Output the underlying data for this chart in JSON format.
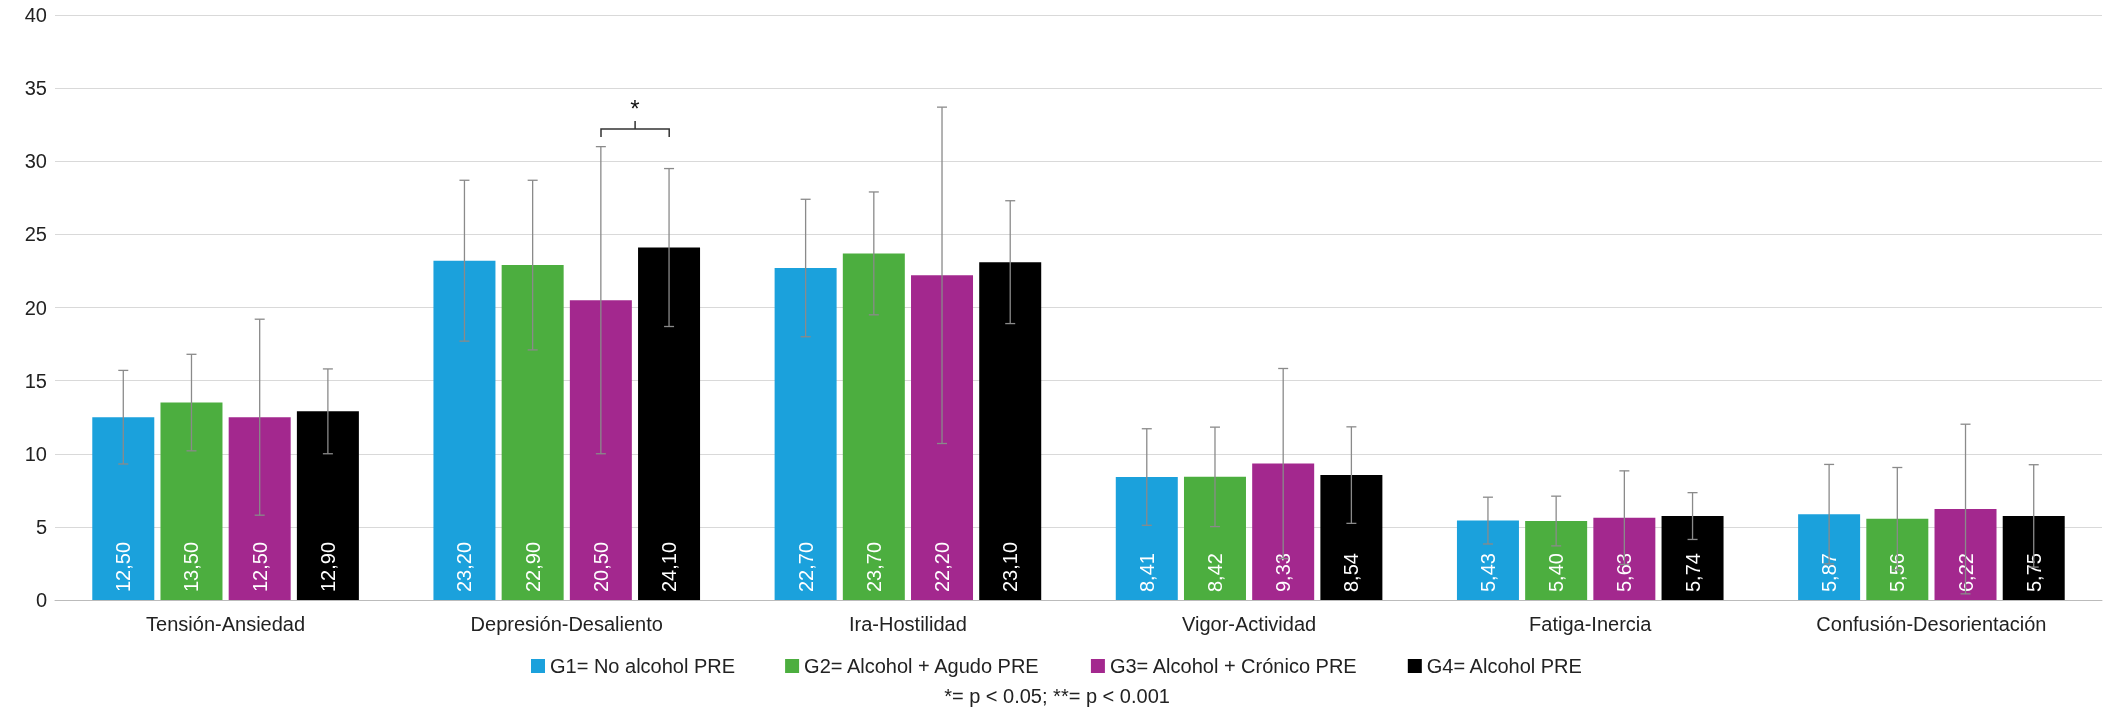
{
  "chart_data": {
    "type": "bar",
    "categories": [
      "Tensión-Ansiedad",
      "Depresión-Desaliento",
      "Ira-Hostilidad",
      "Vigor-Actividad",
      "Fatiga-Inercia",
      "Confusión-Desorientación"
    ],
    "series": [
      {
        "name": "G1= No alcohol PRE",
        "color": "#1ba1dc",
        "values": [
          12.5,
          23.2,
          22.7,
          8.41,
          5.43,
          5.87
        ],
        "value_labels": [
          "12,50",
          "23,20",
          "22,70",
          "8,41",
          "5,43",
          "5,87"
        ],
        "errors": [
          3.2,
          5.5,
          4.7,
          3.3,
          1.6,
          3.4
        ]
      },
      {
        "name": "G2= Alcohol + Agudo PRE",
        "color": "#4cae3f",
        "values": [
          13.5,
          22.9,
          23.7,
          8.42,
          5.4,
          5.56
        ],
        "value_labels": [
          "13,50",
          "22,90",
          "23,70",
          "8,42",
          "5,40",
          "5,56"
        ],
        "errors": [
          3.3,
          5.8,
          4.2,
          3.4,
          1.7,
          3.5
        ]
      },
      {
        "name": "G3= Alcohol + Crónico PRE",
        "color": "#a3288e",
        "values": [
          12.5,
          20.5,
          22.2,
          9.33,
          5.63,
          6.22
        ],
        "value_labels": [
          "12,50",
          "20,50",
          "22,20",
          "9,33",
          "5,63",
          "6,22"
        ],
        "errors": [
          6.7,
          10.5,
          11.5,
          6.5,
          3.2,
          5.8
        ]
      },
      {
        "name": "G4= Alcohol PRE",
        "color": "#000000",
        "values": [
          12.9,
          24.1,
          23.1,
          8.54,
          5.74,
          5.75
        ],
        "value_labels": [
          "12,90",
          "24,10",
          "23,10",
          "8,54",
          "5,74",
          "5,75"
        ],
        "errors": [
          2.9,
          5.4,
          4.2,
          3.3,
          1.6,
          3.5
        ]
      }
    ],
    "ylim": [
      0,
      40
    ],
    "yticks": [
      0,
      5,
      10,
      15,
      20,
      25,
      30,
      35,
      40
    ],
    "grid": "y",
    "legend": "bottom",
    "annotations": [
      "*",
      "*= p < 0.05; **= p < 0.001"
    ]
  }
}
